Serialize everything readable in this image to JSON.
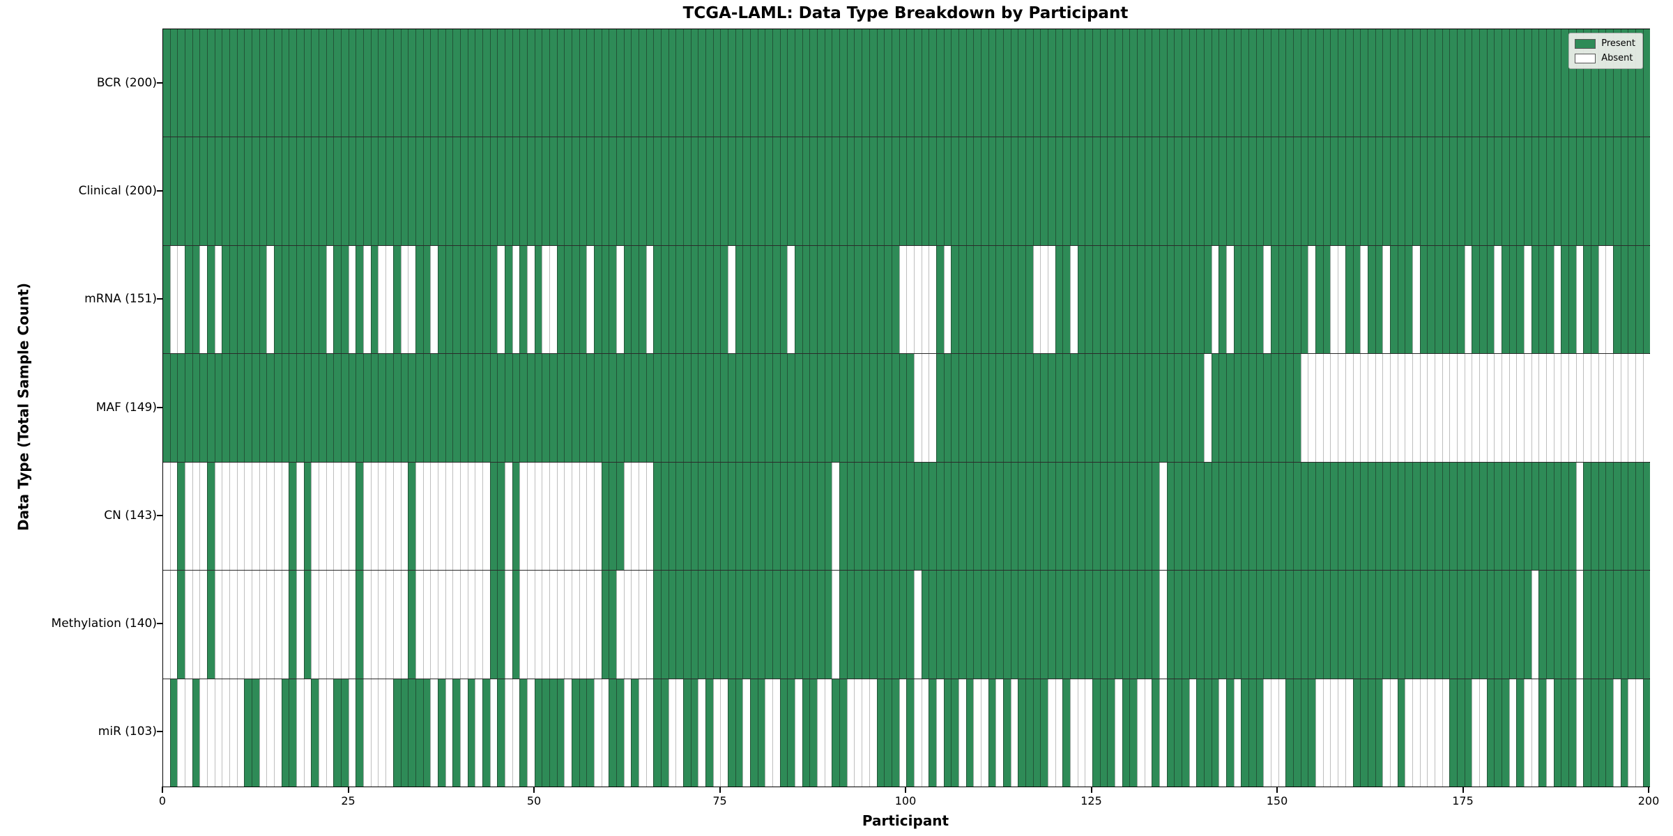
{
  "title": "TCGA-LAML: Data Type Breakdown by Participant",
  "chart_data": {
    "type": "heatmap",
    "title": "TCGA-LAML: Data Type Breakdown by Participant",
    "xlabel": "Participant",
    "ylabel": "Data Type (Total Sample Count)",
    "x_ticks": [
      0,
      25,
      50,
      75,
      100,
      125,
      150,
      175,
      200
    ],
    "x_range": [
      0,
      200
    ],
    "n_participants": 200,
    "grid": false,
    "legend_position": "upper right",
    "legend": [
      {
        "label": "Present",
        "color": "#2e8b57"
      },
      {
        "label": "Absent",
        "color": "#ffffff"
      }
    ],
    "colors": {
      "present": "#2e8b57",
      "absent": "#ffffff",
      "cell_edge_on_present": "rgba(25,40,30,0.55)",
      "cell_edge_on_absent": "rgba(125,125,125,0.5)",
      "row_divider": "#2a2a2a",
      "axes_spine": "#000000",
      "legend_bg": "rgba(240,240,235,0.92)"
    },
    "rows": [
      {
        "label": "BCR (200)",
        "name": "BCR",
        "present_count": 200,
        "absent_runs": []
      },
      {
        "label": "Clinical (200)",
        "name": "Clinical",
        "present_count": 200,
        "absent_runs": []
      },
      {
        "label": "mRNA (151)",
        "name": "mRNA",
        "present_count": 151,
        "absent_runs": [
          [
            1,
            2
          ],
          [
            5,
            5
          ],
          [
            7,
            7
          ],
          [
            14,
            14
          ],
          [
            22,
            22
          ],
          [
            25,
            25
          ],
          [
            27,
            27
          ],
          [
            29,
            30
          ],
          [
            32,
            33
          ],
          [
            36,
            36
          ],
          [
            45,
            45
          ],
          [
            47,
            47
          ],
          [
            49,
            49
          ],
          [
            51,
            52
          ],
          [
            57,
            57
          ],
          [
            61,
            61
          ],
          [
            65,
            65
          ],
          [
            76,
            76
          ],
          [
            84,
            84
          ],
          [
            99,
            103
          ],
          [
            105,
            105
          ],
          [
            117,
            119
          ],
          [
            122,
            122
          ],
          [
            141,
            141
          ],
          [
            143,
            143
          ],
          [
            148,
            148
          ],
          [
            154,
            154
          ],
          [
            157,
            158
          ],
          [
            161,
            161
          ],
          [
            164,
            164
          ],
          [
            168,
            168
          ],
          [
            175,
            175
          ],
          [
            179,
            179
          ],
          [
            183,
            183
          ],
          [
            187,
            187
          ],
          [
            190,
            190
          ],
          [
            193,
            194
          ]
        ]
      },
      {
        "label": "MAF (149)",
        "name": "MAF",
        "present_count": 149,
        "absent_runs": [
          [
            101,
            103
          ],
          [
            140,
            140
          ],
          [
            153,
            199
          ]
        ]
      },
      {
        "label": "CN (143)",
        "name": "CN",
        "present_count": 143,
        "absent_runs": [
          [
            0,
            1
          ],
          [
            3,
            5
          ],
          [
            7,
            16
          ],
          [
            18,
            18
          ],
          [
            20,
            25
          ],
          [
            27,
            32
          ],
          [
            34,
            43
          ],
          [
            46,
            46
          ],
          [
            48,
            58
          ],
          [
            62,
            65
          ],
          [
            90,
            90
          ],
          [
            134,
            134
          ],
          [
            190,
            190
          ]
        ]
      },
      {
        "label": "Methylation (140)",
        "name": "Methylation",
        "present_count": 140,
        "absent_runs": [
          [
            0,
            1
          ],
          [
            3,
            5
          ],
          [
            7,
            16
          ],
          [
            18,
            18
          ],
          [
            20,
            25
          ],
          [
            27,
            32
          ],
          [
            34,
            43
          ],
          [
            46,
            46
          ],
          [
            48,
            58
          ],
          [
            61,
            65
          ],
          [
            90,
            90
          ],
          [
            101,
            101
          ],
          [
            134,
            134
          ],
          [
            184,
            184
          ],
          [
            190,
            190
          ]
        ]
      },
      {
        "label": "miR (103)",
        "name": "miR",
        "present_count": 103,
        "absent_runs": [
          [
            0,
            0
          ],
          [
            2,
            3
          ],
          [
            5,
            10
          ],
          [
            13,
            15
          ],
          [
            18,
            19
          ],
          [
            21,
            22
          ],
          [
            25,
            25
          ],
          [
            27,
            30
          ],
          [
            36,
            36
          ],
          [
            38,
            38
          ],
          [
            40,
            40
          ],
          [
            42,
            42
          ],
          [
            44,
            44
          ],
          [
            46,
            47
          ],
          [
            49,
            49
          ],
          [
            54,
            54
          ],
          [
            58,
            59
          ],
          [
            62,
            62
          ],
          [
            64,
            65
          ],
          [
            68,
            69
          ],
          [
            72,
            72
          ],
          [
            74,
            75
          ],
          [
            78,
            78
          ],
          [
            81,
            82
          ],
          [
            85,
            85
          ],
          [
            88,
            89
          ],
          [
            92,
            95
          ],
          [
            99,
            99
          ],
          [
            101,
            102
          ],
          [
            104,
            104
          ],
          [
            107,
            107
          ],
          [
            109,
            110
          ],
          [
            112,
            112
          ],
          [
            114,
            114
          ],
          [
            119,
            120
          ],
          [
            122,
            124
          ],
          [
            128,
            128
          ],
          [
            131,
            132
          ],
          [
            134,
            134
          ],
          [
            138,
            138
          ],
          [
            142,
            142
          ],
          [
            144,
            144
          ],
          [
            148,
            150
          ],
          [
            155,
            159
          ],
          [
            164,
            165
          ],
          [
            167,
            172
          ],
          [
            176,
            177
          ],
          [
            181,
            181
          ],
          [
            183,
            184
          ],
          [
            186,
            186
          ],
          [
            190,
            190
          ],
          [
            195,
            195
          ],
          [
            197,
            198
          ]
        ]
      }
    ]
  }
}
